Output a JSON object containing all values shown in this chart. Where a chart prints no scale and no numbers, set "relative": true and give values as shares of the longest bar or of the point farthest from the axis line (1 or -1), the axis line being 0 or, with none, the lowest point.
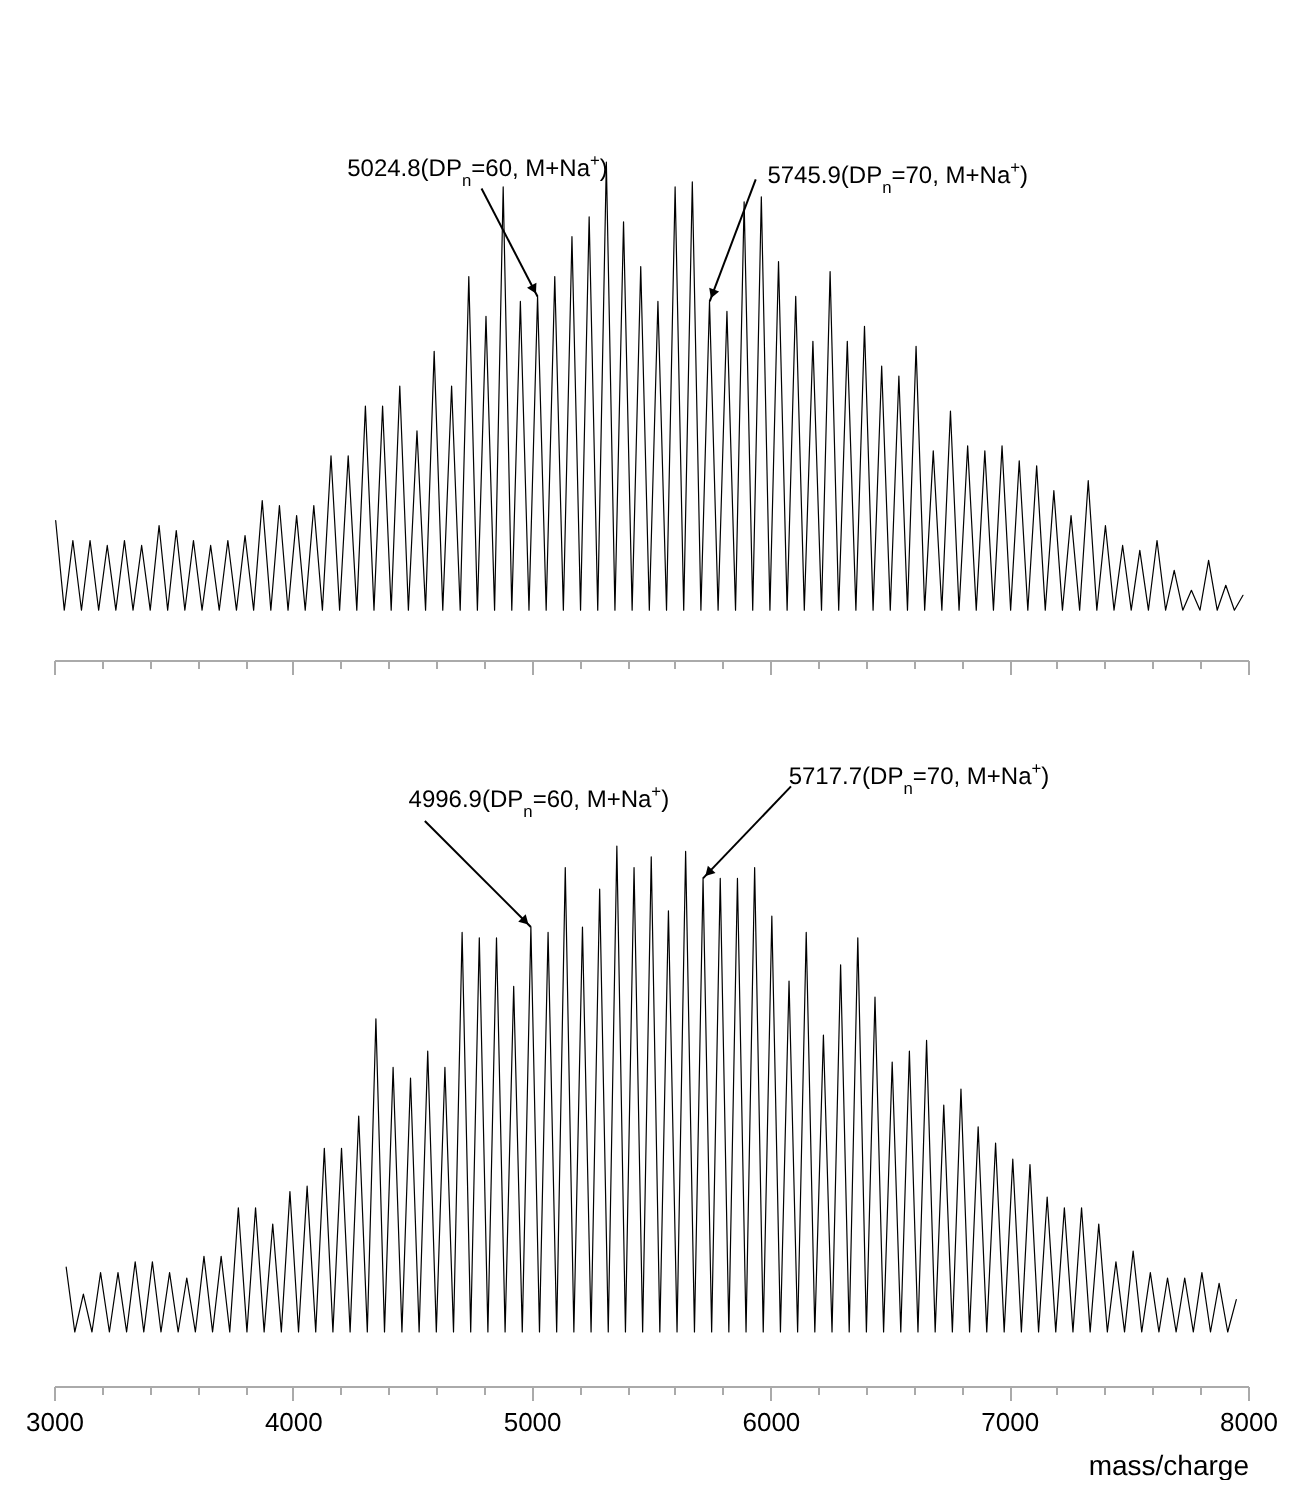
{
  "chart_data": [
    {
      "type": "line",
      "relative": true,
      "xlim": [
        3000,
        8000
      ],
      "tick_labels": false,
      "xticks": [
        3000,
        {
          "value": 3200,
          "label": null
        },
        {
          "value": 3400,
          "label": null
        },
        {
          "value": 3600,
          "label": null
        },
        {
          "value": 3800,
          "label": null
        },
        4000,
        {
          "value": 4200,
          "label": null
        },
        {
          "value": 4400,
          "label": null
        },
        {
          "value": 4600,
          "label": null
        },
        {
          "value": 4800,
          "label": null
        },
        5000,
        {
          "value": 5200,
          "label": null
        },
        {
          "value": 5400,
          "label": null
        },
        {
          "value": 5600,
          "label": null
        },
        {
          "value": 5800,
          "label": null
        },
        6000,
        {
          "value": 6200,
          "label": null
        },
        {
          "value": 6400,
          "label": null
        },
        {
          "value": 6600,
          "label": null
        },
        {
          "value": 6800,
          "label": null
        },
        7000,
        {
          "value": 7200,
          "label": null
        },
        {
          "value": 7400,
          "label": null
        },
        {
          "value": 7600,
          "label": null
        },
        {
          "value": 7800,
          "label": null
        },
        8000
      ],
      "annotations": [
        {
          "text": "5024.8(DP$_{n}$=60, M+Na$^{+}$)",
          "x": 5024.8,
          "y": 0.73
        },
        {
          "text": "5745.9(DP$_{n}$=70, M+Na$^{+}$)",
          "x": 5745.9,
          "y": 0.72
        }
      ],
      "x": [
        3007,
        3043,
        3079,
        3115,
        3151,
        3187,
        3223,
        3259,
        3295,
        3331,
        3367,
        3403,
        3440,
        3476,
        3512,
        3548,
        3584,
        3620,
        3656,
        3692,
        3728,
        3764,
        3800,
        3836,
        3872,
        3908,
        3944,
        3980,
        4016,
        4052,
        4088,
        4124,
        4160,
        4196,
        4232,
        4268,
        4304,
        4340,
        4376,
        4412,
        4448,
        4484,
        4520,
        4556,
        4592,
        4628,
        4665,
        4701,
        4737,
        4773,
        4809,
        4845,
        4881,
        4917,
        4953,
        4989,
        5025,
        5061,
        5097,
        5133,
        5169,
        5205,
        5241,
        5277,
        5313,
        5349,
        5385,
        5421,
        5457,
        5493,
        5529,
        5565,
        5601,
        5637,
        5673,
        5709,
        5745,
        5781,
        5818,
        5854,
        5890,
        5926,
        5962,
        5998,
        6034,
        6070,
        6106,
        6142,
        6178,
        6214,
        6250,
        6286,
        6322,
        6358,
        6394,
        6430,
        6466,
        6502,
        6538,
        6574,
        6610,
        6646,
        6682,
        6718,
        6754,
        6790,
        6826,
        6862,
        6898,
        6934,
        6970,
        7006,
        7042,
        7078,
        7115,
        7151,
        7187,
        7223,
        7259,
        7295,
        7331,
        7367,
        7403,
        7439,
        7475,
        7511,
        7547,
        7583,
        7619,
        7655,
        7691,
        7727,
        7763,
        7799,
        7835,
        7871,
        7907,
        7943,
        7979
      ],
      "series": [
        {
          "color": "#000000",
          "values": [
            0.28,
            0.1,
            0.24,
            0.1,
            0.24,
            0.1,
            0.23,
            0.1,
            0.24,
            0.1,
            0.23,
            0.1,
            0.27,
            0.1,
            0.26,
            0.1,
            0.24,
            0.1,
            0.23,
            0.1,
            0.24,
            0.1,
            0.25,
            0.1,
            0.32,
            0.1,
            0.31,
            0.1,
            0.29,
            0.1,
            0.31,
            0.1,
            0.41,
            0.1,
            0.41,
            0.1,
            0.51,
            0.1,
            0.51,
            0.1,
            0.55,
            0.1,
            0.46,
            0.1,
            0.62,
            0.1,
            0.55,
            0.1,
            0.77,
            0.1,
            0.69,
            0.1,
            0.95,
            0.1,
            0.72,
            0.1,
            0.73,
            0.1,
            0.77,
            0.1,
            0.85,
            0.1,
            0.89,
            0.1,
            1.0,
            0.1,
            0.88,
            0.1,
            0.79,
            0.1,
            0.72,
            0.1,
            0.95,
            0.1,
            0.96,
            0.1,
            0.72,
            0.1,
            0.7,
            0.1,
            0.92,
            0.1,
            0.93,
            0.1,
            0.8,
            0.1,
            0.73,
            0.1,
            0.64,
            0.1,
            0.78,
            0.1,
            0.64,
            0.1,
            0.67,
            0.1,
            0.59,
            0.1,
            0.57,
            0.1,
            0.63,
            0.1,
            0.42,
            0.1,
            0.5,
            0.1,
            0.43,
            0.1,
            0.42,
            0.1,
            0.43,
            0.1,
            0.4,
            0.1,
            0.39,
            0.1,
            0.34,
            0.1,
            0.29,
            0.1,
            0.36,
            0.1,
            0.27,
            0.1,
            0.23,
            0.1,
            0.22,
            0.1,
            0.24,
            0.1,
            0.18,
            0.1,
            0.14,
            0.1,
            0.2,
            0.1,
            0.15,
            0.1,
            0.13
          ]
        }
      ]
    },
    {
      "type": "line",
      "relative": true,
      "xlim": [
        3000,
        8000
      ],
      "tick_labels": "x",
      "xlabel": "mass/charge",
      "xticks": [
        3000,
        {
          "value": 3200,
          "label": null
        },
        {
          "value": 3400,
          "label": null
        },
        {
          "value": 3600,
          "label": null
        },
        {
          "value": 3800,
          "label": null
        },
        4000,
        {
          "value": 4200,
          "label": null
        },
        {
          "value": 4400,
          "label": null
        },
        {
          "value": 4600,
          "label": null
        },
        {
          "value": 4800,
          "label": null
        },
        5000,
        {
          "value": 5200,
          "label": null
        },
        {
          "value": 5400,
          "label": null
        },
        {
          "value": 5600,
          "label": null
        },
        {
          "value": 5800,
          "label": null
        },
        6000,
        {
          "value": 6200,
          "label": null
        },
        {
          "value": 6400,
          "label": null
        },
        {
          "value": 6600,
          "label": null
        },
        {
          "value": 6800,
          "label": null
        },
        7000,
        {
          "value": 7200,
          "label": null
        },
        {
          "value": 7400,
          "label": null
        },
        {
          "value": 7600,
          "label": null
        },
        {
          "value": 7800,
          "label": null
        },
        8000
      ],
      "annotations": [
        {
          "text": "4996.9(DP$_{n}$=60, M+Na$^{+}$)",
          "x": 4996.9,
          "y": 0.85
        },
        {
          "text": "5717.7(DP$_{n}$=70, M+Na$^{+}$)",
          "x": 5717.7,
          "y": 0.94
        }
      ],
      "x": [
        3051,
        3087,
        3123,
        3159,
        3195,
        3232,
        3268,
        3304,
        3340,
        3376,
        3412,
        3448,
        3484,
        3520,
        3556,
        3592,
        3628,
        3664,
        3700,
        3736,
        3772,
        3808,
        3844,
        3880,
        3916,
        3952,
        3988,
        4024,
        4060,
        4096,
        4132,
        4168,
        4204,
        4240,
        4276,
        4312,
        4348,
        4384,
        4420,
        4457,
        4493,
        4529,
        4565,
        4601,
        4637,
        4673,
        4709,
        4745,
        4781,
        4817,
        4853,
        4889,
        4925,
        4961,
        4997,
        5033,
        5069,
        5105,
        5141,
        5177,
        5213,
        5249,
        5285,
        5321,
        5357,
        5393,
        5429,
        5465,
        5501,
        5537,
        5573,
        5609,
        5645,
        5682,
        5718,
        5754,
        5790,
        5826,
        5862,
        5898,
        5934,
        5970,
        6006,
        6042,
        6078,
        6114,
        6150,
        6186,
        6222,
        6258,
        6294,
        6330,
        6366,
        6402,
        6438,
        6474,
        6510,
        6546,
        6582,
        6618,
        6654,
        6690,
        6726,
        6762,
        6798,
        6834,
        6870,
        6906,
        6943,
        6979,
        7015,
        7051,
        7087,
        7123,
        7159,
        7195,
        7231,
        7267,
        7303,
        7339,
        7375,
        7411,
        7447,
        7483,
        7519,
        7555,
        7591,
        7627,
        7663,
        7699,
        7735,
        7771,
        7807,
        7843,
        7879,
        7915,
        7951
      ],
      "series": [
        {
          "color": "#000000",
          "values": [
            0.22,
            0.1,
            0.17,
            0.1,
            0.21,
            0.1,
            0.21,
            0.1,
            0.23,
            0.1,
            0.23,
            0.1,
            0.21,
            0.1,
            0.2,
            0.1,
            0.24,
            0.1,
            0.24,
            0.1,
            0.33,
            0.1,
            0.33,
            0.1,
            0.3,
            0.1,
            0.36,
            0.1,
            0.37,
            0.1,
            0.44,
            0.1,
            0.44,
            0.1,
            0.5,
            0.1,
            0.68,
            0.1,
            0.59,
            0.1,
            0.57,
            0.1,
            0.62,
            0.1,
            0.59,
            0.1,
            0.84,
            0.1,
            0.83,
            0.1,
            0.83,
            0.1,
            0.74,
            0.1,
            0.85,
            0.1,
            0.84,
            0.1,
            0.96,
            0.1,
            0.85,
            0.1,
            0.92,
            0.1,
            1.0,
            0.1,
            0.96,
            0.1,
            0.98,
            0.1,
            0.88,
            0.1,
            0.99,
            0.1,
            0.94,
            0.1,
            0.94,
            0.1,
            0.94,
            0.1,
            0.96,
            0.1,
            0.87,
            0.1,
            0.75,
            0.1,
            0.84,
            0.1,
            0.65,
            0.1,
            0.78,
            0.1,
            0.83,
            0.1,
            0.72,
            0.1,
            0.6,
            0.1,
            0.62,
            0.1,
            0.64,
            0.1,
            0.52,
            0.1,
            0.55,
            0.1,
            0.48,
            0.1,
            0.45,
            0.1,
            0.42,
            0.1,
            0.41,
            0.1,
            0.35,
            0.1,
            0.33,
            0.1,
            0.33,
            0.1,
            0.3,
            0.1,
            0.23,
            0.1,
            0.25,
            0.1,
            0.21,
            0.1,
            0.2,
            0.1,
            0.2,
            0.1,
            0.21,
            0.1,
            0.19,
            0.1,
            0.16
          ]
        }
      ]
    }
  ]
}
